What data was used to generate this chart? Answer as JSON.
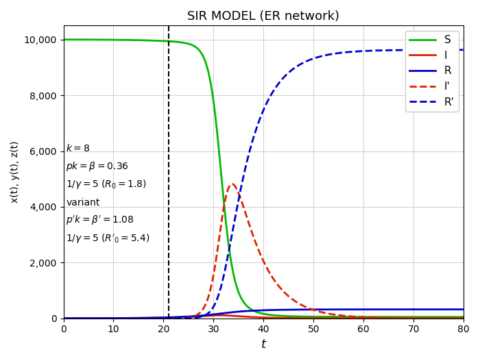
{
  "title": "SIR MODEL (ER network)",
  "xlabel": "t",
  "ylabel": "x(t), y(t), z(t)",
  "N": 10000,
  "beta": 0.36,
  "gamma": 0.2,
  "beta_prime": 1.08,
  "gamma_prime": 0.2,
  "t_start": 0,
  "t_end": 80,
  "dt": 0.05,
  "t_variant": 21,
  "I0": 1,
  "I0_prime": 1,
  "colors": {
    "S": "#00bb00",
    "I": "#dd2200",
    "R": "#0000cc",
    "I_prime": "#dd2200",
    "R_prime": "#0000cc"
  },
  "xlim": [
    0,
    80
  ],
  "ylim": [
    0,
    10500
  ],
  "yticks": [
    0,
    2000,
    4000,
    6000,
    8000,
    10000
  ],
  "xticks": [
    0,
    10,
    20,
    30,
    40,
    50,
    60,
    70,
    80
  ],
  "figsize": [
    7.0,
    5.27
  ],
  "dpi": 100,
  "variant_line_x": 21
}
